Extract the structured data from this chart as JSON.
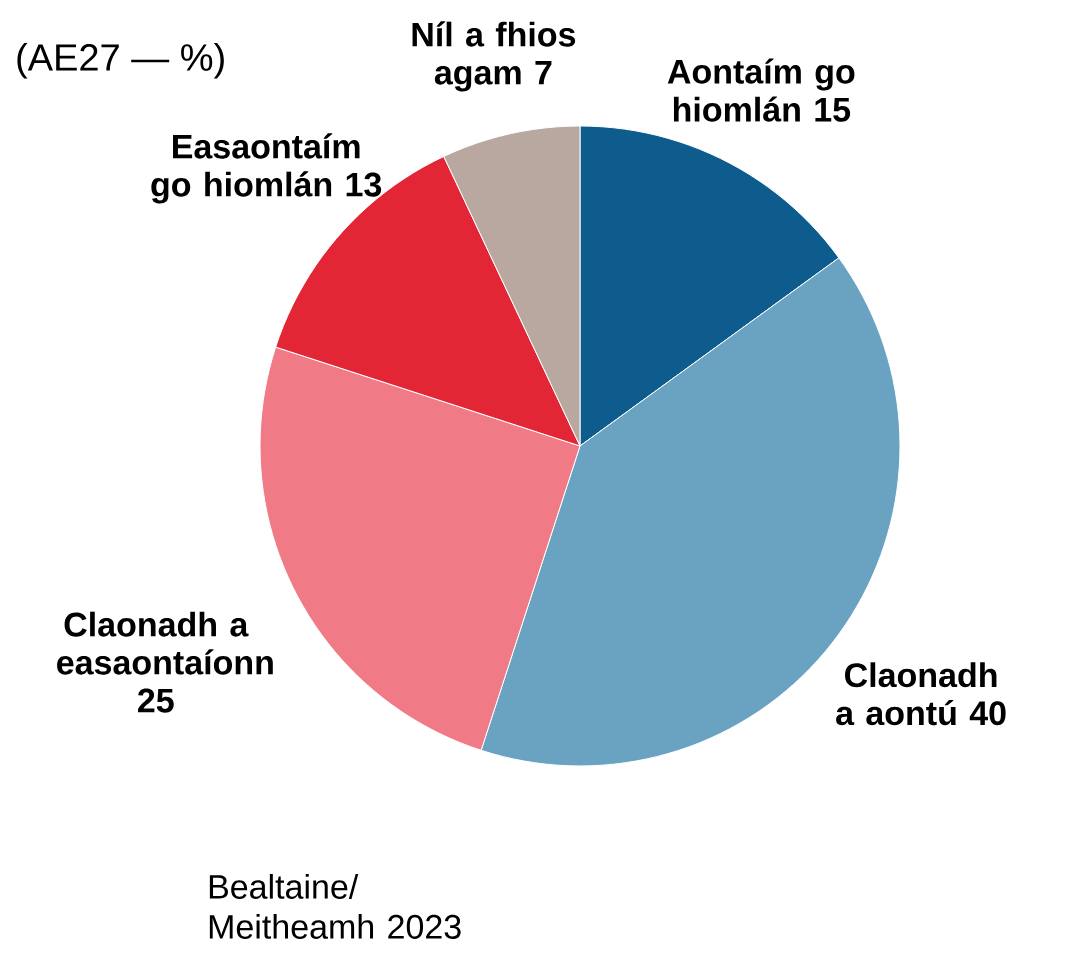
{
  "chart_data": {
    "type": "pie",
    "subtitle": "(AE27 — %)",
    "categories": [
      "Aontaím go hiomlán",
      "Claonadh a aontú",
      "Claonadh a easaontaíonn",
      "Easaontaím go hiomlán",
      "Níl a fhios agam"
    ],
    "values": [
      15,
      40,
      25,
      13,
      7
    ],
    "colors": [
      "#0e5c8e",
      "#6aa3c2",
      "#f07b86",
      "#e32636",
      "#b8a8a0"
    ],
    "data_labels": true,
    "annotations": [
      "Bealtaine/ Meitheamh 2023"
    ]
  }
}
